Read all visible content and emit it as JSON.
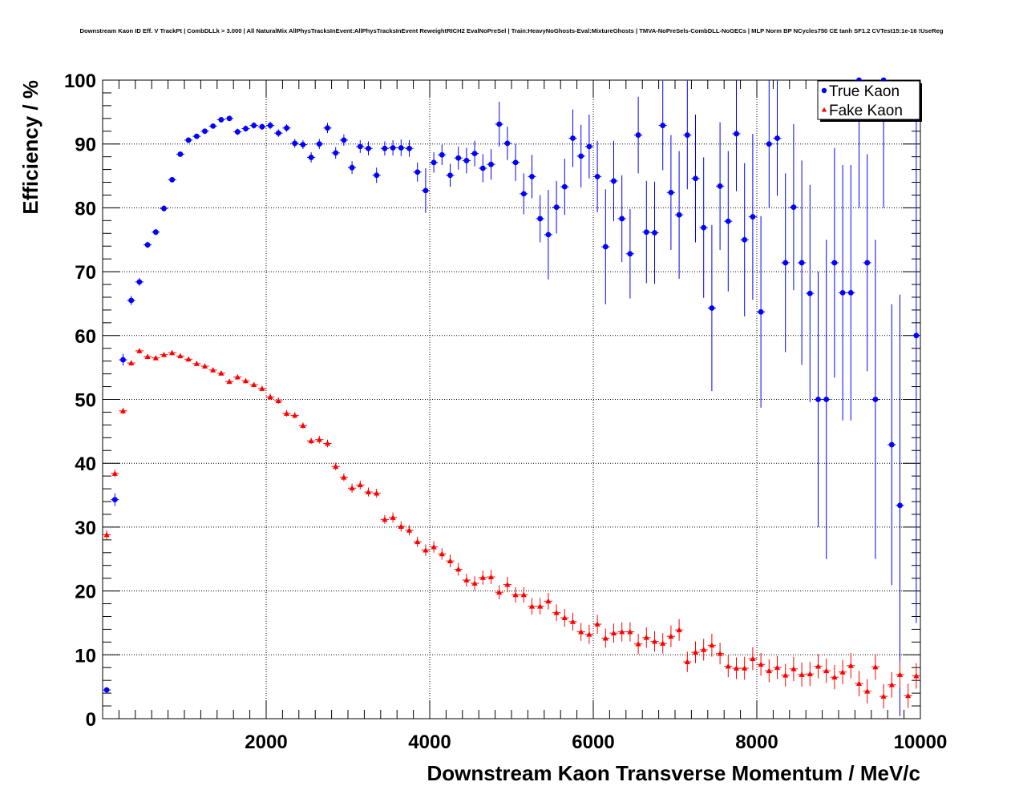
{
  "chart_data": {
    "type": "scatter",
    "title": "Downstream Kaon ID Eff. V TrackPt | CombDLLk > 3.000 | All NaturalMix AllPhysTracksInEvent:AllPhysTracksInEvent ReweightRICH2 EvalNoPreSel | Train:HeavyNoGhosts-Eval:MixtureGhosts | TMVA-NoPreSels-CombDLL-NoGECs | MLP Norm BP NCycles750 CE tanh SF1.2 CVTest15:1e-16 !UseReg",
    "xlabel": "Downstream Kaon Transverse Momentum / MeV/c",
    "ylabel": "Efficiency / %",
    "xlim": [
      0,
      10000
    ],
    "ylim": [
      0,
      100
    ],
    "x_ticks": [
      2000,
      4000,
      6000,
      8000,
      10000
    ],
    "x_tick_labels": [
      "2000",
      "4000",
      "6000",
      "8000",
      "10000"
    ],
    "y_ticks": [
      0,
      10,
      20,
      30,
      40,
      50,
      60,
      70,
      80,
      90,
      100
    ],
    "y_tick_labels": [
      "0",
      "10",
      "20",
      "30",
      "40",
      "50",
      "60",
      "70",
      "80",
      "90",
      "100"
    ],
    "grid": true,
    "legend_position": "top-right",
    "bin_width": 100,
    "series": [
      {
        "name": "True Kaon",
        "color": "#0000ff",
        "marker": "circle",
        "values": [
          4.5,
          34.3,
          56.2,
          65.5,
          68.4,
          74.2,
          76.2,
          79.9,
          84.4,
          88.4,
          90.6,
          91.2,
          92.0,
          92.8,
          93.8,
          94.0,
          91.9,
          92.4,
          92.9,
          92.7,
          92.9,
          91.7,
          92.5,
          90.1,
          89.9,
          87.9,
          90.0,
          92.5,
          88.6,
          90.6,
          86.3,
          89.6,
          89.3,
          85.1,
          89.3,
          89.4,
          89.4,
          89.3,
          85.6,
          82.7,
          87.1,
          88.3,
          85.1,
          87.8,
          87.4,
          88.5,
          86.2,
          86.8,
          93.1,
          90.1,
          87.1,
          82.2,
          84.9,
          78.3,
          75.8,
          80.1,
          83.3,
          90.9,
          88.1,
          89.6,
          84.9,
          73.9,
          84.2,
          78.3,
          72.8,
          91.4,
          76.2,
          76.1,
          92.9,
          82.4,
          78.9,
          91.4,
          84.6,
          76.9,
          64.3,
          83.4,
          77.9,
          91.6,
          75.0,
          78.6,
          63.7,
          90.0,
          90.9,
          71.4,
          80.1,
          71.4,
          66.6,
          50.0,
          50.0,
          71.4,
          66.7,
          66.7,
          100,
          71.4,
          50.0,
          100,
          42.9,
          33.4,
          null,
          60.0
        ],
        "errors": [
          0.4,
          1.0,
          0.9,
          0.7,
          0.6,
          0.5,
          0.5,
          0.5,
          0.4,
          0.4,
          0.4,
          0.4,
          0.4,
          0.4,
          0.4,
          0.4,
          0.5,
          0.5,
          0.5,
          0.5,
          0.6,
          0.6,
          0.6,
          0.7,
          0.7,
          0.8,
          0.8,
          0.8,
          0.9,
          0.9,
          1.0,
          1.0,
          1.1,
          1.2,
          1.1,
          1.2,
          1.3,
          1.3,
          1.5,
          3.5,
          1.6,
          1.6,
          1.8,
          1.8,
          2.0,
          2.0,
          2.2,
          2.4,
          3.5,
          2.6,
          2.9,
          3.2,
          3.4,
          3.7,
          7.0,
          4.1,
          4.4,
          4.5,
          4.9,
          5.0,
          5.6,
          9.0,
          6.3,
          6.8,
          7.0,
          6.0,
          8.0,
          8.0,
          7.0,
          9.0,
          10.0,
          8.5,
          10.0,
          11.0,
          13.0,
          10.0,
          11.0,
          9.0,
          12.0,
          13.0,
          15.0,
          10.0,
          9.0,
          14.0,
          13.0,
          16.0,
          17.0,
          20.0,
          25.0,
          18.0,
          20.0,
          20.0,
          20.0,
          17.0,
          25.0,
          20.0,
          22.0,
          33.0,
          null,
          45.0
        ]
      },
      {
        "name": "Fake Kaon",
        "color": "#ff0000",
        "marker": "triangle",
        "values": [
          28.8,
          38.4,
          48.2,
          55.7,
          57.6,
          56.7,
          56.5,
          57.0,
          57.3,
          56.8,
          56.3,
          55.6,
          55.2,
          54.6,
          54.1,
          52.8,
          53.5,
          52.9,
          52.3,
          51.7,
          50.4,
          49.8,
          47.8,
          47.5,
          45.9,
          43.5,
          43.7,
          43.1,
          39.5,
          37.8,
          36.1,
          36.6,
          35.5,
          35.3,
          31.2,
          31.5,
          30.1,
          29.5,
          27.7,
          26.4,
          26.9,
          25.8,
          24.7,
          23.4,
          21.7,
          21.2,
          22.1,
          22.2,
          19.8,
          21.0,
          19.4,
          19.4,
          17.6,
          17.6,
          18.4,
          16.6,
          15.8,
          15.2,
          13.6,
          13.2,
          14.8,
          12.6,
          13.4,
          13.6,
          13.6,
          11.7,
          12.7,
          12.1,
          11.8,
          12.9,
          13.9,
          8.9,
          10.4,
          10.8,
          11.5,
          10.2,
          8.2,
          7.9,
          7.9,
          9.4,
          8.5,
          7.5,
          8.0,
          6.8,
          7.8,
          6.9,
          7.0,
          8.2,
          7.5,
          6.5,
          7.3,
          8.3,
          5.5,
          4.3,
          8.1,
          3.5,
          5.3,
          6.9,
          3.6,
          6.7
        ],
        "errors": [
          0.7,
          0.6,
          0.5,
          0.4,
          0.4,
          0.4,
          0.4,
          0.4,
          0.4,
          0.4,
          0.4,
          0.4,
          0.4,
          0.4,
          0.4,
          0.4,
          0.4,
          0.4,
          0.4,
          0.4,
          0.5,
          0.5,
          0.5,
          0.5,
          0.5,
          0.5,
          0.6,
          0.6,
          0.6,
          0.6,
          0.7,
          0.7,
          0.7,
          0.7,
          0.7,
          0.8,
          0.8,
          0.8,
          0.8,
          0.9,
          0.9,
          0.9,
          1.0,
          1.0,
          1.0,
          1.1,
          1.1,
          1.1,
          1.1,
          1.2,
          1.2,
          1.2,
          1.3,
          1.3,
          1.3,
          1.3,
          1.4,
          1.4,
          1.4,
          1.5,
          1.5,
          1.5,
          1.5,
          1.5,
          1.5,
          1.6,
          1.6,
          1.6,
          1.6,
          1.7,
          1.7,
          1.6,
          1.7,
          1.7,
          1.8,
          1.7,
          1.7,
          1.7,
          1.8,
          1.8,
          1.8,
          1.8,
          1.8,
          1.8,
          1.9,
          1.9,
          1.9,
          1.9,
          1.9,
          1.9,
          1.9,
          2.0,
          2.0,
          1.9,
          2.0,
          1.9,
          2.0,
          2.0,
          1.9,
          2.0
        ]
      }
    ]
  }
}
